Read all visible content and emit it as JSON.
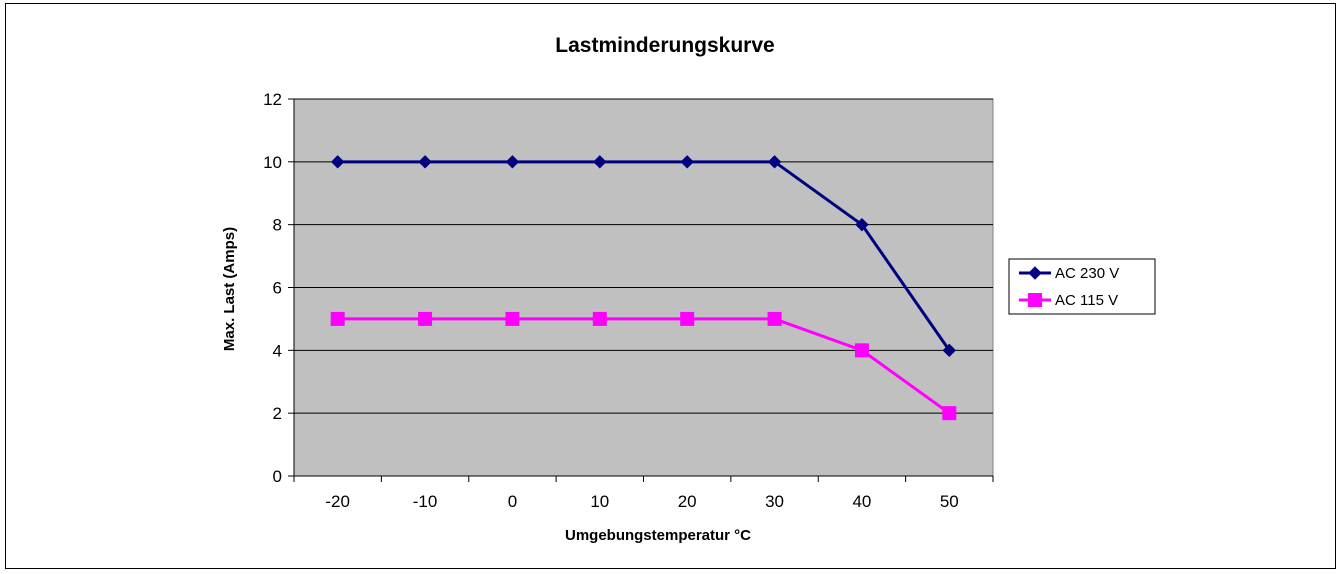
{
  "chart_data": {
    "type": "line",
    "title": "Lastminderungskurve",
    "xlabel": "Umgebungstemperatur °C",
    "ylabel": "Max. Last (Amps)",
    "categories": [
      "-20",
      "-10",
      "0",
      "10",
      "20",
      "30",
      "40",
      "50"
    ],
    "ylim": [
      0,
      12
    ],
    "yticks": [
      "0",
      "2",
      "4",
      "6",
      "8",
      "10",
      "12"
    ],
    "grid": "horizontal",
    "legend_position": "right",
    "plot_background": "#c0c0c0",
    "series": [
      {
        "name": "AC 230 V",
        "values": [
          10,
          10,
          10,
          10,
          10,
          10,
          8,
          4
        ],
        "color": "#000080",
        "marker": "diamond"
      },
      {
        "name": "AC 115 V",
        "values": [
          5,
          5,
          5,
          5,
          5,
          5,
          4,
          2
        ],
        "color": "#ff00ff",
        "marker": "square"
      }
    ]
  }
}
